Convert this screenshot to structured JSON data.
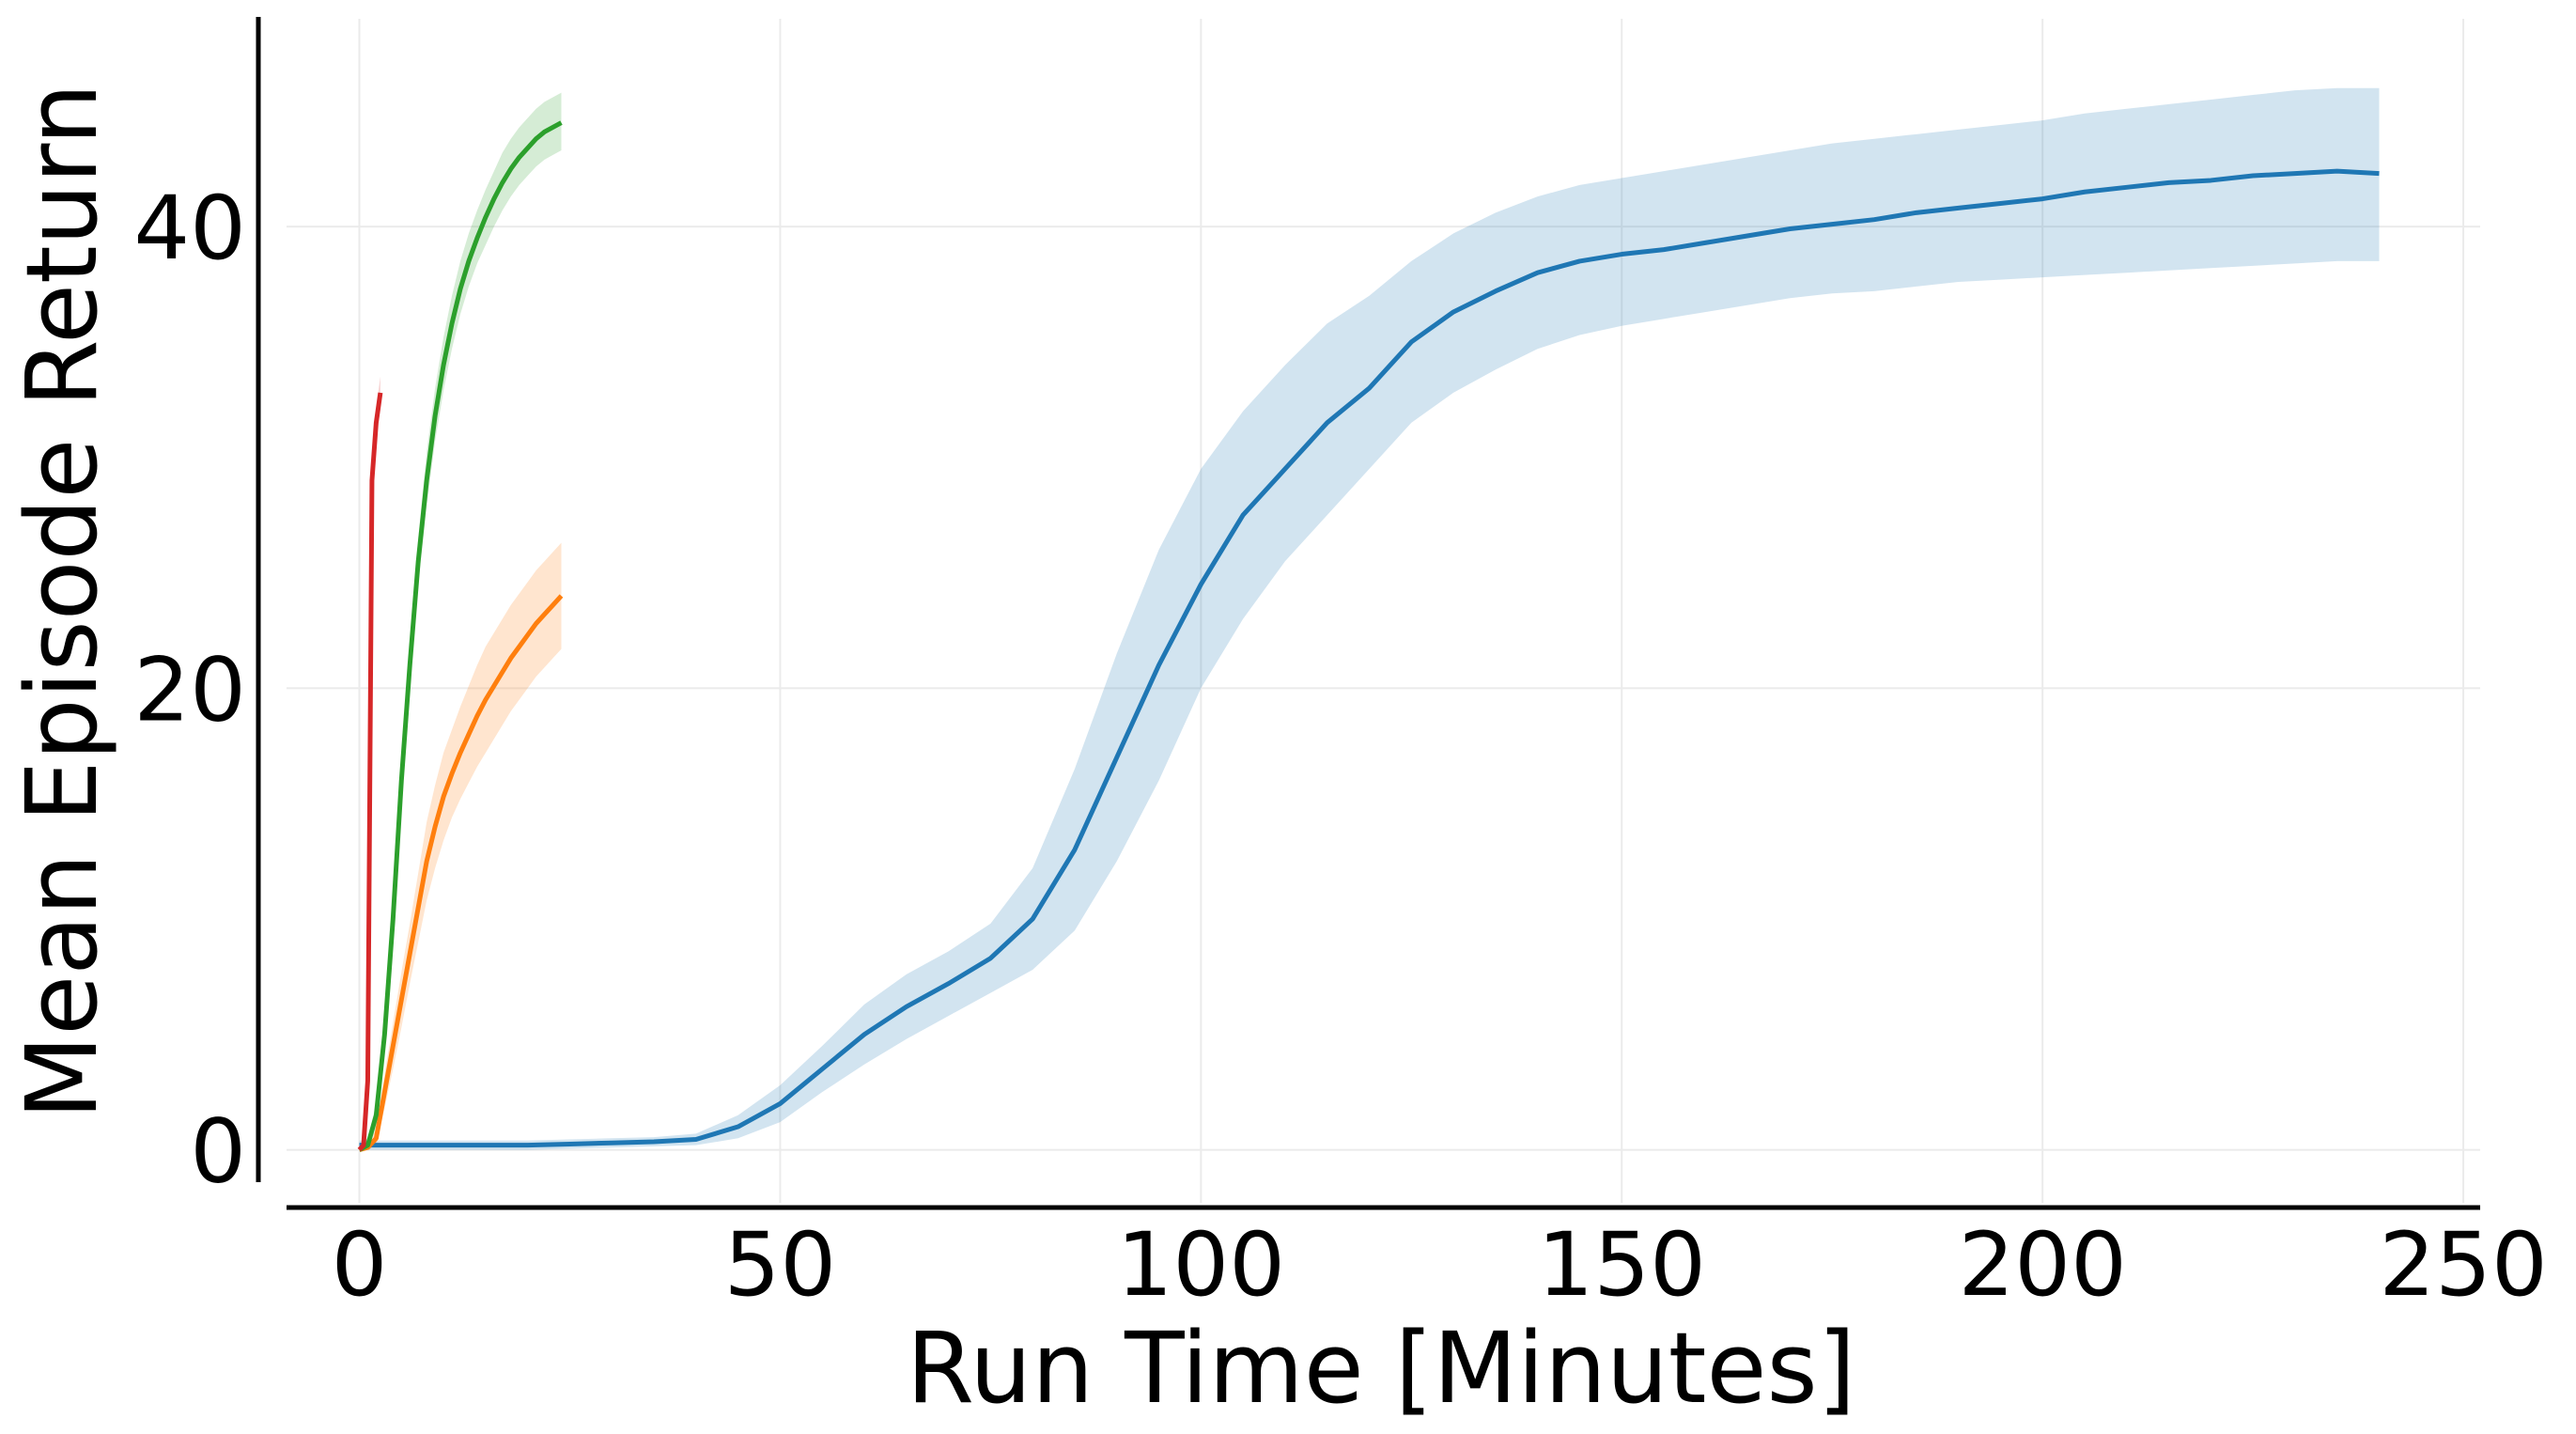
{
  "chart_data": {
    "type": "line",
    "title": "",
    "xlabel": "Run Time [Minutes]",
    "ylabel": "Mean Episode Return",
    "xlim": [
      -12,
      252
    ],
    "ylim": [
      -2.5,
      49
    ],
    "xticks": [
      0,
      50,
      100,
      150,
      200,
      250
    ],
    "yticks": [
      0,
      20,
      40
    ],
    "grid": true,
    "legend": "none",
    "series": [
      {
        "color": "#1f77b4",
        "x": [
          0,
          5,
          10,
          15,
          20,
          25,
          30,
          35,
          40,
          45,
          50,
          55,
          60,
          65,
          70,
          75,
          80,
          85,
          90,
          95,
          100,
          105,
          110,
          115,
          120,
          125,
          130,
          135,
          140,
          145,
          150,
          155,
          160,
          165,
          170,
          175,
          180,
          185,
          190,
          195,
          200,
          205,
          210,
          215,
          220,
          225,
          230,
          235,
          240
        ],
        "y": [
          0.2,
          0.2,
          0.2,
          0.2,
          0.2,
          0.25,
          0.3,
          0.35,
          0.45,
          1.0,
          2.0,
          3.5,
          5.0,
          6.2,
          7.2,
          8.3,
          10.0,
          13.0,
          17.0,
          21.0,
          24.5,
          27.5,
          29.5,
          31.5,
          33.0,
          35.0,
          36.3,
          37.2,
          38.0,
          38.5,
          38.8,
          39.0,
          39.3,
          39.6,
          39.9,
          40.1,
          40.3,
          40.6,
          40.8,
          41.0,
          41.2,
          41.5,
          41.7,
          41.9,
          42.0,
          42.2,
          42.3,
          42.4,
          42.3
        ],
        "lower": [
          0.0,
          0.0,
          0.0,
          0.0,
          0.0,
          0.05,
          0.1,
          0.15,
          0.2,
          0.5,
          1.2,
          2.5,
          3.7,
          4.8,
          5.8,
          6.8,
          7.8,
          9.5,
          12.5,
          16.0,
          20.0,
          23.0,
          25.5,
          27.5,
          29.5,
          31.5,
          32.8,
          33.8,
          34.7,
          35.3,
          35.7,
          36.0,
          36.3,
          36.6,
          36.9,
          37.1,
          37.2,
          37.4,
          37.6,
          37.7,
          37.8,
          37.9,
          38.0,
          38.1,
          38.2,
          38.3,
          38.4,
          38.5,
          38.5
        ],
        "upper": [
          0.4,
          0.4,
          0.4,
          0.4,
          0.4,
          0.45,
          0.5,
          0.55,
          0.7,
          1.5,
          2.8,
          4.5,
          6.3,
          7.6,
          8.6,
          9.8,
          12.2,
          16.5,
          21.5,
          26.0,
          29.5,
          32.0,
          34.0,
          35.8,
          37.0,
          38.5,
          39.7,
          40.6,
          41.3,
          41.8,
          42.1,
          42.4,
          42.7,
          43.0,
          43.3,
          43.6,
          43.8,
          44.0,
          44.2,
          44.4,
          44.6,
          44.9,
          45.1,
          45.3,
          45.5,
          45.7,
          45.9,
          46.0,
          46.0
        ]
      },
      {
        "color": "#ff7f0e",
        "x": [
          0,
          1,
          2,
          3,
          4,
          5,
          6,
          7,
          8,
          9,
          10,
          11,
          12,
          13,
          14,
          15,
          16,
          17,
          18,
          19,
          20,
          21,
          22,
          23,
          24
        ],
        "y": [
          0.0,
          0.1,
          0.5,
          2.5,
          4.5,
          6.5,
          8.5,
          10.5,
          12.5,
          14.0,
          15.3,
          16.3,
          17.2,
          18.0,
          18.8,
          19.5,
          20.1,
          20.7,
          21.3,
          21.8,
          22.3,
          22.8,
          23.2,
          23.6,
          24.0
        ],
        "lower": [
          0.0,
          0.0,
          0.2,
          1.8,
          3.5,
          5.3,
          7.2,
          9.0,
          10.8,
          12.2,
          13.4,
          14.4,
          15.2,
          15.9,
          16.6,
          17.2,
          17.8,
          18.4,
          19.0,
          19.5,
          20.0,
          20.5,
          20.9,
          21.3,
          21.7
        ],
        "upper": [
          0.2,
          0.3,
          0.9,
          3.3,
          5.5,
          7.7,
          9.8,
          12.0,
          14.2,
          15.8,
          17.2,
          18.2,
          19.2,
          20.1,
          21.0,
          21.8,
          22.4,
          23.0,
          23.6,
          24.1,
          24.6,
          25.1,
          25.5,
          25.9,
          26.3
        ]
      },
      {
        "color": "#2ca02c",
        "x": [
          0,
          1,
          2,
          3,
          4,
          5,
          6,
          7,
          8,
          9,
          10,
          11,
          12,
          13,
          14,
          15,
          16,
          17,
          18,
          19,
          20,
          21,
          22,
          23,
          24
        ],
        "y": [
          0.0,
          0.2,
          1.5,
          5.0,
          10.0,
          16.0,
          21.0,
          25.5,
          29.0,
          31.8,
          34.0,
          35.8,
          37.3,
          38.5,
          39.5,
          40.4,
          41.2,
          41.9,
          42.5,
          43.0,
          43.4,
          43.8,
          44.1,
          44.3,
          44.5
        ],
        "lower": [
          0.0,
          0.0,
          1.0,
          4.3,
          9.2,
          15.0,
          20.0,
          24.5,
          27.9,
          30.7,
          32.9,
          34.7,
          36.2,
          37.4,
          38.4,
          39.2,
          40.0,
          40.7,
          41.3,
          41.8,
          42.2,
          42.6,
          42.9,
          43.1,
          43.3
        ],
        "upper": [
          0.2,
          0.5,
          2.0,
          5.8,
          10.8,
          17.0,
          22.0,
          26.5,
          30.2,
          33.0,
          35.2,
          37.0,
          38.5,
          39.7,
          40.7,
          41.6,
          42.4,
          43.2,
          43.8,
          44.3,
          44.7,
          45.1,
          45.4,
          45.6,
          45.8
        ]
      },
      {
        "color": "#d62728",
        "x": [
          0,
          0.5,
          1.0,
          1.5,
          2.0,
          2.5
        ],
        "y": [
          0.0,
          0.2,
          3.0,
          29.0,
          31.5,
          32.8
        ],
        "lower": [
          0.0,
          0.1,
          2.5,
          28.2,
          30.8,
          32.1
        ],
        "upper": [
          0.1,
          0.3,
          3.5,
          29.8,
          32.2,
          33.5
        ]
      }
    ]
  }
}
